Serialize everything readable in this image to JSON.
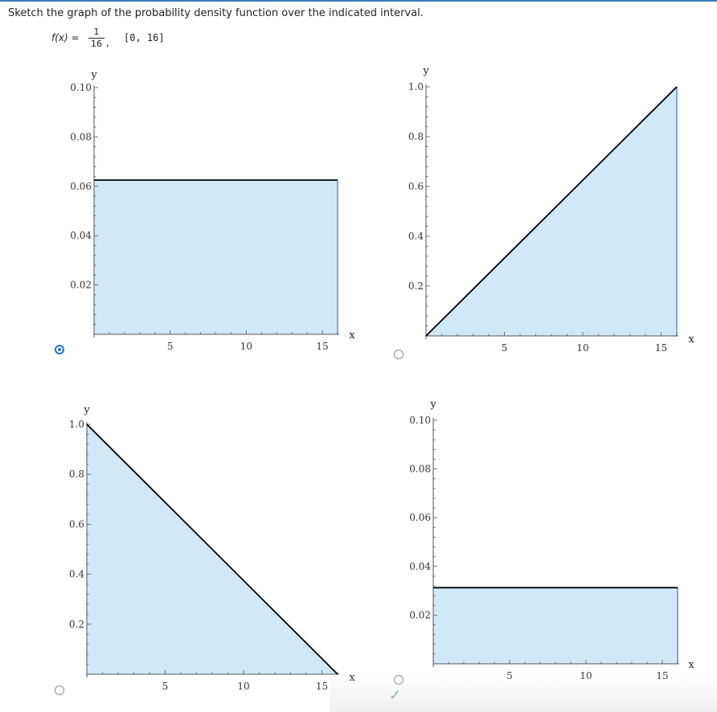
{
  "question": {
    "text": "Sketch the graph of the probability density function over the indicated interval."
  },
  "formula": {
    "lhs": "f(x) =",
    "numerator": "1",
    "denominator": "16",
    "separator": ",",
    "interval": "[0, 16]"
  },
  "options": [
    {
      "id": "a",
      "selected": true,
      "correct": false
    },
    {
      "id": "b",
      "selected": false,
      "correct": false
    },
    {
      "id": "c",
      "selected": false,
      "correct": false
    },
    {
      "id": "d",
      "selected": false,
      "correct": true,
      "check_icon": "checkmark-icon"
    }
  ],
  "colors": {
    "fill": "#cfe9f8",
    "edge": "#6b8fbf",
    "line": "#000000",
    "axis": "#555555",
    "radio_selected": "#1a73e8",
    "check": "#3c9a3c"
  },
  "chart_data": [
    {
      "type": "area",
      "xlabel": "x",
      "ylabel": "y",
      "xlim": [
        0,
        16
      ],
      "ylim": [
        0,
        0.1
      ],
      "xticks": [
        "5",
        "10",
        "15"
      ],
      "yticks": [
        "0.02",
        "0.04",
        "0.06",
        "0.08",
        "0.10"
      ],
      "x": [
        0,
        16
      ],
      "y": [
        0.0625,
        0.0625
      ]
    },
    {
      "type": "area",
      "xlabel": "x",
      "ylabel": "y",
      "xlim": [
        0,
        16
      ],
      "ylim": [
        0,
        1.0
      ],
      "xticks": [
        "5",
        "10",
        "15"
      ],
      "yticks": [
        "0.2",
        "0.4",
        "0.6",
        "0.8",
        "1.0"
      ],
      "x": [
        0,
        16
      ],
      "y": [
        0,
        1.0
      ]
    },
    {
      "type": "area",
      "xlabel": "x",
      "ylabel": "y",
      "xlim": [
        0,
        16
      ],
      "ylim": [
        0,
        1.0
      ],
      "xticks": [
        "5",
        "10",
        "15"
      ],
      "yticks": [
        "0.2",
        "0.4",
        "0.6",
        "0.8",
        "1.0"
      ],
      "x": [
        0,
        16
      ],
      "y": [
        1.0,
        0
      ]
    },
    {
      "type": "area",
      "xlabel": "x",
      "ylabel": "y",
      "xlim": [
        0,
        16
      ],
      "ylim": [
        0,
        0.1
      ],
      "xticks": [
        "5",
        "10",
        "15"
      ],
      "yticks": [
        "0.02",
        "0.04",
        "0.06",
        "0.08",
        "0.10"
      ],
      "x": [
        0,
        16
      ],
      "y": [
        0.03125,
        0.03125
      ]
    }
  ]
}
